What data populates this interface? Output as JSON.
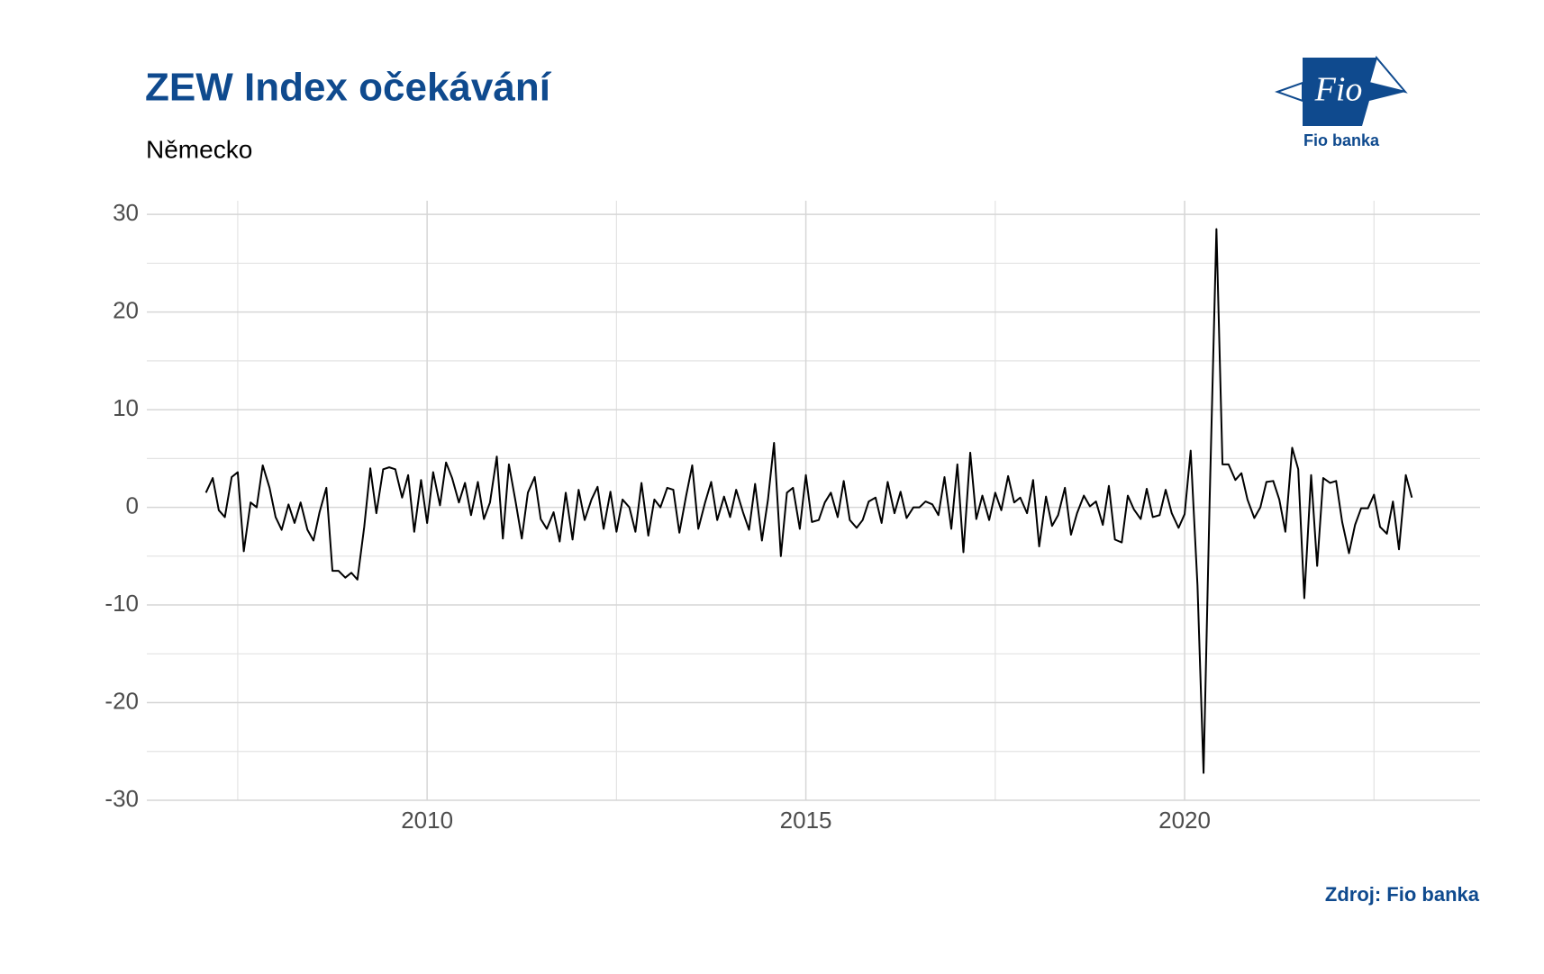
{
  "chart_data": {
    "type": "line",
    "title": "ZEW Index očekávání",
    "subtitle": "Německo",
    "source": "Zdroj: Fio banka",
    "logo": {
      "mark": "Fio",
      "name": "Fio banka"
    },
    "x": [
      2007.08,
      2007.17,
      2007.25,
      2007.33,
      2007.42,
      2007.5,
      2007.58,
      2007.67,
      2007.75,
      2007.83,
      2007.92,
      2008.0,
      2008.08,
      2008.17,
      2008.25,
      2008.33,
      2008.42,
      2008.5,
      2008.58,
      2008.67,
      2008.75,
      2008.83,
      2008.92,
      2009.0,
      2009.08,
      2009.17,
      2009.25,
      2009.33,
      2009.42,
      2009.5,
      2009.58,
      2009.67,
      2009.75,
      2009.83,
      2009.92,
      2010.0,
      2010.08,
      2010.17,
      2010.25,
      2010.33,
      2010.42,
      2010.5,
      2010.58,
      2010.67,
      2010.75,
      2010.83,
      2010.92,
      2011.0,
      2011.08,
      2011.17,
      2011.25,
      2011.33,
      2011.42,
      2011.5,
      2011.58,
      2011.67,
      2011.75,
      2011.83,
      2011.92,
      2012.0,
      2012.08,
      2012.17,
      2012.25,
      2012.33,
      2012.42,
      2012.5,
      2012.58,
      2012.67,
      2012.75,
      2012.83,
      2012.92,
      2013.0,
      2013.08,
      2013.17,
      2013.25,
      2013.33,
      2013.42,
      2013.5,
      2013.58,
      2013.67,
      2013.75,
      2013.83,
      2013.92,
      2014.0,
      2014.08,
      2014.17,
      2014.25,
      2014.33,
      2014.42,
      2014.5,
      2014.58,
      2014.67,
      2014.75,
      2014.83,
      2014.92,
      2015.0,
      2015.08,
      2015.17,
      2015.25,
      2015.33,
      2015.42,
      2015.5,
      2015.58,
      2015.67,
      2015.75,
      2015.83,
      2015.92,
      2016.0,
      2016.08,
      2016.17,
      2016.25,
      2016.33,
      2016.42,
      2016.5,
      2016.58,
      2016.67,
      2016.75,
      2016.83,
      2016.92,
      2017.0,
      2017.08,
      2017.17,
      2017.25,
      2017.33,
      2017.42,
      2017.5,
      2017.58,
      2017.67,
      2017.75,
      2017.83,
      2017.92,
      2018.0,
      2018.08,
      2018.17,
      2018.25,
      2018.33,
      2018.42,
      2018.5,
      2018.58,
      2018.67,
      2018.75,
      2018.83,
      2018.92,
      2019.0,
      2019.08,
      2019.17,
      2019.25,
      2019.33,
      2019.42,
      2019.5,
      2019.58,
      2019.67,
      2019.75,
      2019.83,
      2019.92,
      2020.0,
      2020.08,
      2020.17,
      2020.25,
      2020.33,
      2020.42,
      2020.5,
      2020.58,
      2020.67,
      2020.75,
      2020.83,
      2020.92,
      2021.0,
      2021.08,
      2021.17,
      2021.25,
      2021.33,
      2021.42,
      2021.5,
      2021.58,
      2021.67,
      2021.75,
      2021.83,
      2021.92,
      2022.0,
      2022.08,
      2022.17,
      2022.25,
      2022.33,
      2022.42,
      2022.5,
      2022.58,
      2022.67,
      2022.75,
      2022.83,
      2022.92,
      2023.0
    ],
    "series": [
      {
        "color": "#000000",
        "values": [
          1.5,
          3,
          -0.3,
          -1,
          3.1,
          3.6,
          -4.5,
          0.5,
          0,
          4.3,
          2,
          -1,
          -2.3,
          0.3,
          -1.6,
          0.5,
          -2.3,
          -3.4,
          -0.5,
          2,
          -6.5,
          -6.5,
          -7.2,
          -6.7,
          -7.4,
          -2,
          4,
          -0.6,
          3.9,
          4.1,
          3.9,
          1,
          3.3,
          -2.5,
          2.8,
          -1.6,
          3.6,
          0.2,
          4.6,
          3,
          0.5,
          2.5,
          -0.8,
          2.6,
          -1.2,
          0.5,
          5.2,
          -3.2,
          4.4,
          0.5,
          -3.2,
          1.5,
          3.1,
          -1.2,
          -2.2,
          -0.5,
          -3.5,
          1.5,
          -3.3,
          1.8,
          -1.3,
          0.8,
          2.1,
          -2.2,
          1.6,
          -2.5,
          0.8,
          0,
          -2.5,
          2.5,
          -2.9,
          0.8,
          0,
          2,
          1.8,
          -2.6,
          1.2,
          4.3,
          -2.2,
          0.5,
          2.6,
          -1.3,
          1.1,
          -1,
          1.8,
          -0.5,
          -2.3,
          2.4,
          -3.4,
          0.8,
          6.6,
          -5,
          1.5,
          2,
          -2.2,
          3.3,
          -1.5,
          -1.3,
          0.5,
          1.5,
          -1,
          2.7,
          -1.3,
          -2.1,
          -1.3,
          0.6,
          1,
          -1.6,
          2.6,
          -0.6,
          1.6,
          -1.1,
          0,
          0,
          0.6,
          0.3,
          -0.8,
          3.1,
          -2.2,
          4.4,
          -4.6,
          5.6,
          -1.2,
          1.2,
          -1.3,
          1.5,
          -0.3,
          3.2,
          0.5,
          1,
          -0.6,
          2.8,
          -4,
          1.1,
          -1.9,
          -0.8,
          2,
          -2.8,
          -0.6,
          1.2,
          0.1,
          0.6,
          -1.8,
          2.2,
          -3.3,
          -3.6,
          1.2,
          -0.2,
          -1.2,
          1.9,
          -1,
          -0.8,
          1.8,
          -0.6,
          -2.1,
          -0.7,
          5.8,
          -8,
          -27.2,
          0.6,
          28.5,
          4.4,
          4.4,
          2.8,
          3.5,
          0.8,
          -1.1,
          0,
          2.6,
          2.7,
          0.8,
          -2.5,
          6.1,
          3.9,
          -9.3,
          3.3,
          -6,
          3,
          2.5,
          2.7,
          -1.5,
          -4.7,
          -1.8,
          -0.1,
          -0.1,
          1.3,
          -2,
          -2.7,
          0.6,
          -4.3,
          3.3,
          1
        ]
      }
    ],
    "xlim": [
      2006.3,
      2023.9
    ],
    "xticks": [
      2010,
      2015,
      2020
    ],
    "x_minor_ticks": [
      2007.5,
      2012.5,
      2017.5,
      2022.5
    ],
    "ylim": [
      -30,
      31.4
    ],
    "yticks": [
      -30,
      -20,
      -10,
      0,
      10,
      20,
      30
    ],
    "y_minor_ticks": [
      -25,
      -15,
      -5,
      5,
      15,
      25
    ],
    "grid": true
  }
}
